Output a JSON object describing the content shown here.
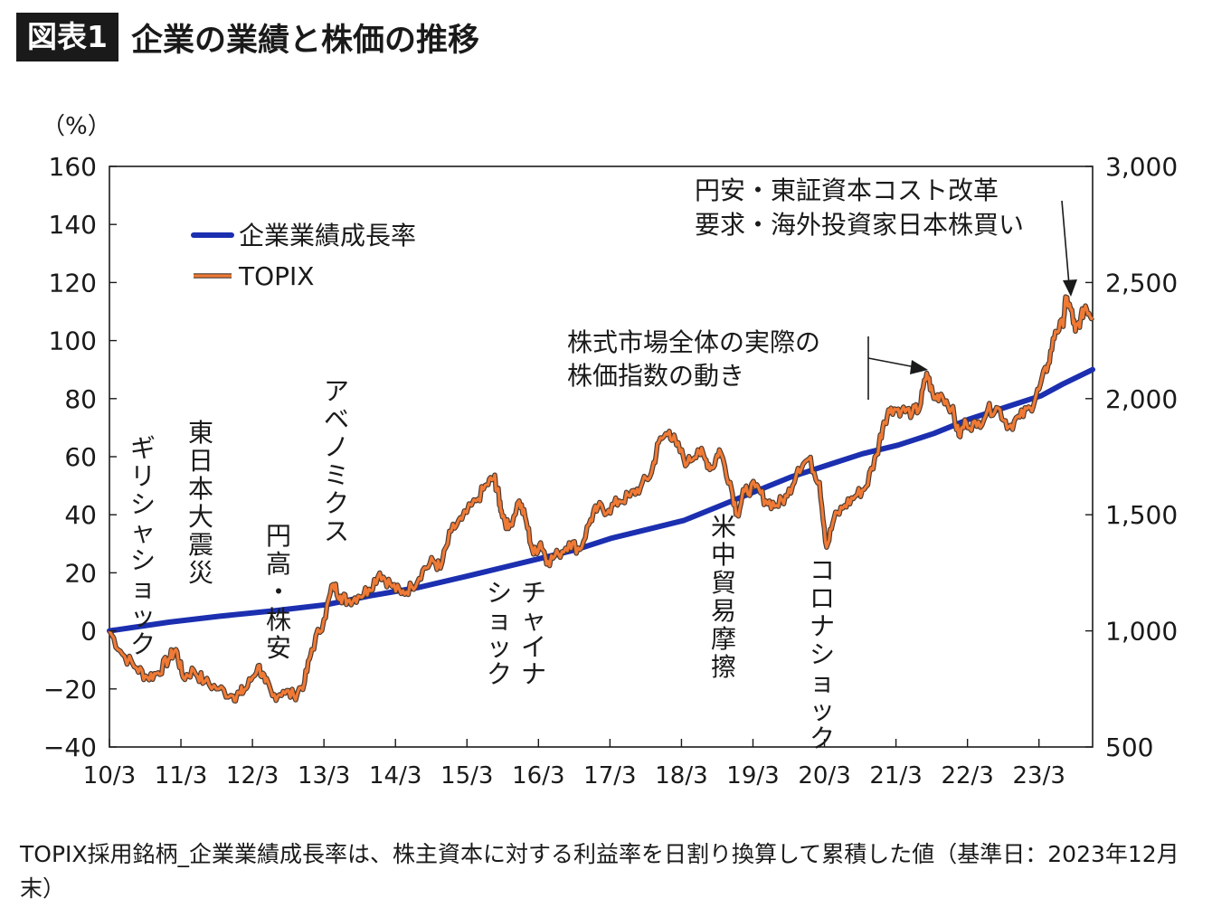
{
  "header": {
    "badge": "図表1",
    "title": "企業の業績と株価の推移"
  },
  "footnote": "TOPIX採用銘柄_企業業績成長率は、株主資本に対する利益率を日割り換算して累積した値（基準日：2023年12月末）",
  "colors": {
    "growth": "#1b2fb0",
    "topix": "#f07a35",
    "topix_outline": "#4a3a30",
    "axis": "#1a1a1a"
  },
  "chart_data": {
    "type": "line",
    "y_left": {
      "unit_label": "（%）",
      "range": [
        -40,
        160
      ],
      "ticks": [
        160,
        140,
        120,
        100,
        80,
        60,
        40,
        20,
        0,
        -20,
        -40
      ],
      "tick_labels": [
        "160",
        "140",
        "120",
        "100",
        "80",
        "60",
        "40",
        "20",
        "0",
        "−20",
        "−40"
      ]
    },
    "y_right": {
      "range": [
        500,
        3000
      ],
      "ticks": [
        3000,
        2500,
        2000,
        1500,
        1000,
        500
      ],
      "tick_labels": [
        "3,000",
        "2,500",
        "2,000",
        "1,500",
        "1,000",
        "500"
      ]
    },
    "x_range": [
      2010.17,
      2023.92
    ],
    "x_ticks": [
      2010.17,
      2011.17,
      2012.17,
      2013.17,
      2014.17,
      2015.17,
      2016.17,
      2017.17,
      2018.17,
      2019.17,
      2020.17,
      2021.17,
      2022.17,
      2023.17
    ],
    "x_tick_labels": [
      "10/3",
      "11/3",
      "12/3",
      "13/3",
      "14/3",
      "15/3",
      "16/3",
      "17/3",
      "18/3",
      "19/3",
      "20/3",
      "21/3",
      "22/3",
      "23/3"
    ],
    "legend": {
      "placement": "top-left",
      "items": [
        "企業業績成長率",
        "TOPIX"
      ]
    },
    "series": [
      {
        "name": "企業業績成長率",
        "axis": "left",
        "points": [
          [
            2010.17,
            0
          ],
          [
            2011.0,
            3
          ],
          [
            2011.7,
            5
          ],
          [
            2012.5,
            7
          ],
          [
            2013.2,
            9
          ],
          [
            2013.8,
            12
          ],
          [
            2014.5,
            15
          ],
          [
            2015.2,
            19
          ],
          [
            2015.7,
            22
          ],
          [
            2016.2,
            25
          ],
          [
            2016.7,
            28
          ],
          [
            2017.2,
            32
          ],
          [
            2017.7,
            35
          ],
          [
            2018.2,
            38
          ],
          [
            2018.7,
            43
          ],
          [
            2019.2,
            48
          ],
          [
            2019.7,
            53
          ],
          [
            2020.2,
            57
          ],
          [
            2020.7,
            61
          ],
          [
            2021.2,
            64
          ],
          [
            2021.7,
            68
          ],
          [
            2022.2,
            73
          ],
          [
            2022.7,
            77
          ],
          [
            2023.2,
            81
          ],
          [
            2023.5,
            85
          ],
          [
            2023.92,
            90
          ]
        ]
      },
      {
        "name": "TOPIX",
        "axis": "right",
        "points": [
          [
            2010.17,
            1000
          ],
          [
            2010.35,
            900
          ],
          [
            2010.55,
            840
          ],
          [
            2010.7,
            800
          ],
          [
            2010.85,
            820
          ],
          [
            2011.0,
            880
          ],
          [
            2011.1,
            920
          ],
          [
            2011.2,
            800
          ],
          [
            2011.35,
            830
          ],
          [
            2011.5,
            780
          ],
          [
            2011.7,
            750
          ],
          [
            2011.9,
            720
          ],
          [
            2012.0,
            730
          ],
          [
            2012.1,
            760
          ],
          [
            2012.25,
            850
          ],
          [
            2012.35,
            780
          ],
          [
            2012.45,
            720
          ],
          [
            2012.6,
            740
          ],
          [
            2012.75,
            720
          ],
          [
            2012.9,
            780
          ],
          [
            2013.0,
            920
          ],
          [
            2013.17,
            1050
          ],
          [
            2013.3,
            1200
          ],
          [
            2013.4,
            1150
          ],
          [
            2013.5,
            1130
          ],
          [
            2013.65,
            1150
          ],
          [
            2013.8,
            1180
          ],
          [
            2013.95,
            1250
          ],
          [
            2014.1,
            1200
          ],
          [
            2014.25,
            1160
          ],
          [
            2014.4,
            1190
          ],
          [
            2014.55,
            1260
          ],
          [
            2014.7,
            1300
          ],
          [
            2014.8,
            1270
          ],
          [
            2014.95,
            1430
          ],
          [
            2015.1,
            1480
          ],
          [
            2015.3,
            1560
          ],
          [
            2015.45,
            1630
          ],
          [
            2015.55,
            1660
          ],
          [
            2015.6,
            1600
          ],
          [
            2015.65,
            1520
          ],
          [
            2015.75,
            1440
          ],
          [
            2015.9,
            1560
          ],
          [
            2016.0,
            1470
          ],
          [
            2016.1,
            1330
          ],
          [
            2016.2,
            1380
          ],
          [
            2016.3,
            1300
          ],
          [
            2016.45,
            1330
          ],
          [
            2016.6,
            1380
          ],
          [
            2016.75,
            1350
          ],
          [
            2016.9,
            1480
          ],
          [
            2017.0,
            1530
          ],
          [
            2017.15,
            1520
          ],
          [
            2017.3,
            1560
          ],
          [
            2017.45,
            1580
          ],
          [
            2017.6,
            1620
          ],
          [
            2017.75,
            1680
          ],
          [
            2017.85,
            1810
          ],
          [
            2018.0,
            1860
          ],
          [
            2018.1,
            1800
          ],
          [
            2018.25,
            1720
          ],
          [
            2018.4,
            1780
          ],
          [
            2018.5,
            1740
          ],
          [
            2018.6,
            1700
          ],
          [
            2018.7,
            1780
          ],
          [
            2018.85,
            1640
          ],
          [
            2018.95,
            1500
          ],
          [
            2019.05,
            1600
          ],
          [
            2019.2,
            1620
          ],
          [
            2019.35,
            1560
          ],
          [
            2019.5,
            1540
          ],
          [
            2019.65,
            1580
          ],
          [
            2019.8,
            1700
          ],
          [
            2019.95,
            1740
          ],
          [
            2020.1,
            1640
          ],
          [
            2020.2,
            1360
          ],
          [
            2020.3,
            1480
          ],
          [
            2020.45,
            1540
          ],
          [
            2020.6,
            1580
          ],
          [
            2020.75,
            1620
          ],
          [
            2020.9,
            1760
          ],
          [
            2021.0,
            1900
          ],
          [
            2021.1,
            1960
          ],
          [
            2021.25,
            1950
          ],
          [
            2021.4,
            1940
          ],
          [
            2021.5,
            1960
          ],
          [
            2021.6,
            2110
          ],
          [
            2021.7,
            2000
          ],
          [
            2021.8,
            2020
          ],
          [
            2021.95,
            1960
          ],
          [
            2022.05,
            1840
          ],
          [
            2022.15,
            1900
          ],
          [
            2022.3,
            1880
          ],
          [
            2022.45,
            1950
          ],
          [
            2022.6,
            1960
          ],
          [
            2022.75,
            1880
          ],
          [
            2022.9,
            1920
          ],
          [
            2023.05,
            1960
          ],
          [
            2023.17,
            2040
          ],
          [
            2023.3,
            2150
          ],
          [
            2023.4,
            2290
          ],
          [
            2023.5,
            2320
          ],
          [
            2023.55,
            2430
          ],
          [
            2023.62,
            2380
          ],
          [
            2023.68,
            2290
          ],
          [
            2023.75,
            2340
          ],
          [
            2023.82,
            2400
          ],
          [
            2023.92,
            2350
          ]
        ]
      }
    ],
    "annotations": [
      {
        "id": "greece",
        "text": "ギリシャショック",
        "x": 2010.5,
        "vertical": true
      },
      {
        "id": "quake",
        "text": "東日本大震災",
        "x": 2011.2,
        "vertical": true
      },
      {
        "id": "yen",
        "text": "円高・株安",
        "x": 2012.4,
        "vertical": true
      },
      {
        "id": "abe",
        "text": "アベノミクス",
        "x": 2013.2,
        "vertical": true
      },
      {
        "id": "china",
        "text": "チャイナショック",
        "x": 2015.9,
        "vertical": true
      },
      {
        "id": "trade",
        "text": "米中貿易摩擦",
        "x": 2018.85,
        "vertical": true
      },
      {
        "id": "corona",
        "text": "コロナショック",
        "x": 2020.1,
        "vertical": true
      },
      {
        "id": "actual",
        "lines": [
          "株式市場全体の実際の",
          "株価指数の動き"
        ]
      },
      {
        "id": "weakyen",
        "lines": [
          "円安・東証資本コスト改革",
          "要求・海外投資家日本株買い"
        ]
      }
    ]
  }
}
